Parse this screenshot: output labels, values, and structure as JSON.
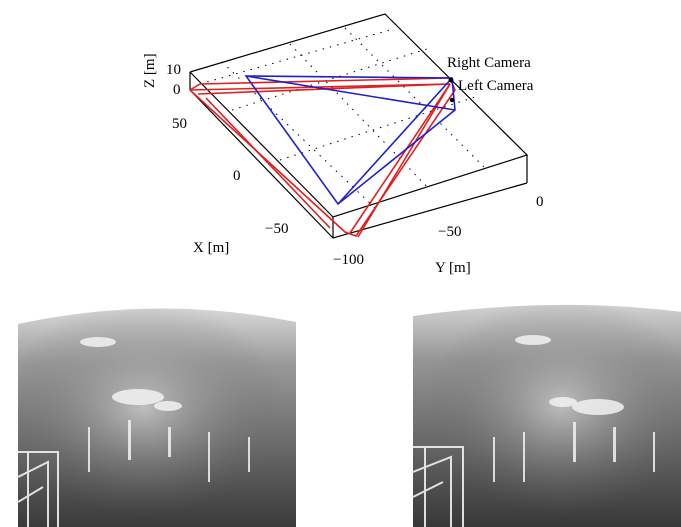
{
  "plot": {
    "z_axis_label": "Z [m]",
    "x_axis_label": "X [m]",
    "y_axis_label": "Y [m]",
    "z_ticks": [
      "10",
      "0"
    ],
    "x_ticks": [
      "50",
      "0",
      "−50"
    ],
    "y_ticks": [
      "0",
      "−50",
      "−100"
    ],
    "camera_labels": {
      "right": "Right Camera",
      "left": "Left Camera"
    },
    "frustum_colors": {
      "right": "#1f1fd0",
      "left": "#e02020"
    }
  },
  "images": [
    {
      "name": "left-camera-image",
      "style": "grayscale lunar terrain"
    },
    {
      "name": "right-camera-image",
      "style": "grayscale lunar terrain"
    }
  ]
}
